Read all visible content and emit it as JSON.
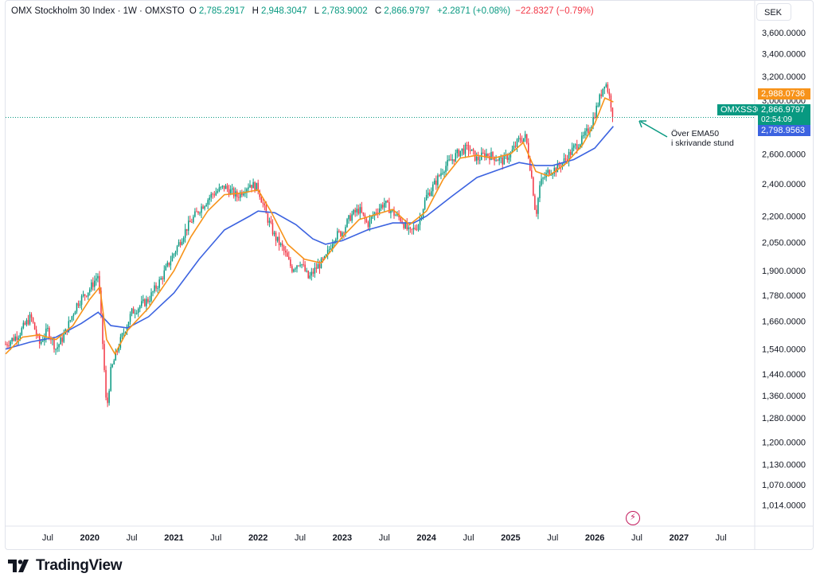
{
  "legend": {
    "title": "OMX Stockholm 30 Index · 1W · OMXSTO",
    "o_label": "O",
    "o_value": "2,785.2917",
    "h_label": "H",
    "h_value": "2,948.3047",
    "l_label": "L",
    "l_value": "2,783.9002",
    "c_label": "C",
    "c_value": "2,866.9797",
    "change": "+2.2871 (+0.08%)",
    "change2": "−22.8327 (−0.79%)"
  },
  "currency": "SEK",
  "tags": {
    "ema_fast": "2,988.0736",
    "symbol": "OMXSS30",
    "price": "2,866.9797",
    "countdown": "02:54:09",
    "ema50": "2,798.9563"
  },
  "annotation": {
    "line1": "Över EMA50",
    "line2": "i skrivande stund"
  },
  "brand": {
    "name": "TradingView"
  },
  "colors": {
    "up": "#089981",
    "down": "#f23645",
    "ema_fast": "#f7931a",
    "ema50": "#3c63e0",
    "price_line": "#089981"
  },
  "chart_data": {
    "type": "line",
    "title": "OMX Stockholm 30 Index · 1W · OMXSTO",
    "y_scale": "log",
    "ylim": [
      960,
      3700
    ],
    "y_ticks": [
      1014,
      1070,
      1130,
      1200,
      1280,
      1360,
      1440,
      1540,
      1660,
      1780,
      1900,
      2050,
      2200,
      2400,
      2600,
      2800,
      3000,
      3200,
      3400,
      3600
    ],
    "y_tick_labels": [
      "1,014.0000",
      "1,070.0000",
      "1,130.0000",
      "1,200.0000",
      "1,280.0000",
      "1,360.0000",
      "1,440.0000",
      "1,540.0000",
      "1,660.0000",
      "1,780.0000",
      "1,900.0000",
      "2,050.0000",
      "2,200.0000",
      "2,400.0000",
      "2,600.0000",
      "2,800.0000",
      "3,000.0000",
      "3,200.0000",
      "3,400.0000",
      "3,600.0000"
    ],
    "xlim": [
      2019.0,
      2027.9
    ],
    "x_ticks": [
      2019.5,
      2020.0,
      2020.5,
      2021.0,
      2021.5,
      2022.0,
      2022.5,
      2023.0,
      2023.5,
      2024.0,
      2024.5,
      2025.0,
      2025.5,
      2026.0,
      2026.5,
      2027.0,
      2027.5
    ],
    "x_tick_labels": [
      "Jul",
      "2020",
      "Jul",
      "2021",
      "Jul",
      "2022",
      "Jul",
      "2023",
      "Jul",
      "2024",
      "Jul",
      "2025",
      "Jul",
      "2026",
      "Jul",
      "2027",
      "Jul"
    ],
    "price_points": [
      [
        2019.0,
        1560
      ],
      [
        2019.15,
        1600
      ],
      [
        2019.3,
        1680
      ],
      [
        2019.4,
        1560
      ],
      [
        2019.5,
        1620
      ],
      [
        2019.6,
        1540
      ],
      [
        2019.7,
        1600
      ],
      [
        2019.85,
        1740
      ],
      [
        2020.0,
        1810
      ],
      [
        2020.1,
        1880
      ],
      [
        2020.13,
        1700
      ],
      [
        2020.2,
        1300
      ],
      [
        2020.25,
        1450
      ],
      [
        2020.35,
        1560
      ],
      [
        2020.5,
        1700
      ],
      [
        2020.7,
        1760
      ],
      [
        2020.85,
        1860
      ],
      [
        2021.0,
        1990
      ],
      [
        2021.15,
        2130
      ],
      [
        2021.3,
        2240
      ],
      [
        2021.45,
        2330
      ],
      [
        2021.6,
        2380
      ],
      [
        2021.75,
        2320
      ],
      [
        2021.9,
        2400
      ],
      [
        2022.0,
        2370
      ],
      [
        2022.1,
        2200
      ],
      [
        2022.2,
        2080
      ],
      [
        2022.3,
        2010
      ],
      [
        2022.4,
        1910
      ],
      [
        2022.5,
        1950
      ],
      [
        2022.6,
        1860
      ],
      [
        2022.7,
        1920
      ],
      [
        2022.8,
        1960
      ],
      [
        2022.9,
        2080
      ],
      [
        2023.0,
        2110
      ],
      [
        2023.1,
        2200
      ],
      [
        2023.2,
        2240
      ],
      [
        2023.3,
        2150
      ],
      [
        2023.4,
        2230
      ],
      [
        2023.5,
        2280
      ],
      [
        2023.6,
        2220
      ],
      [
        2023.7,
        2180
      ],
      [
        2023.8,
        2100
      ],
      [
        2023.9,
        2150
      ],
      [
        2024.0,
        2320
      ],
      [
        2024.1,
        2400
      ],
      [
        2024.2,
        2500
      ],
      [
        2024.3,
        2560
      ],
      [
        2024.4,
        2620
      ],
      [
        2024.5,
        2640
      ],
      [
        2024.6,
        2560
      ],
      [
        2024.7,
        2600
      ],
      [
        2024.8,
        2580
      ],
      [
        2024.9,
        2550
      ],
      [
        2025.0,
        2600
      ],
      [
        2025.1,
        2700
      ],
      [
        2025.18,
        2720
      ],
      [
        2025.25,
        2440
      ],
      [
        2025.3,
        2200
      ],
      [
        2025.35,
        2400
      ],
      [
        2025.45,
        2480
      ],
      [
        2025.55,
        2500
      ],
      [
        2025.65,
        2560
      ],
      [
        2025.75,
        2640
      ],
      [
        2025.85,
        2700
      ],
      [
        2025.95,
        2800
      ],
      [
        2026.05,
        3000
      ],
      [
        2026.12,
        3160
      ],
      [
        2026.15,
        3100
      ],
      [
        2026.19,
        2980
      ],
      [
        2026.22,
        2866.98
      ]
    ],
    "ema_fast_points": [
      [
        2019.0,
        1520
      ],
      [
        2019.2,
        1590
      ],
      [
        2019.4,
        1600
      ],
      [
        2019.6,
        1580
      ],
      [
        2019.8,
        1640
      ],
      [
        2020.0,
        1760
      ],
      [
        2020.12,
        1820
      ],
      [
        2020.2,
        1580
      ],
      [
        2020.3,
        1520
      ],
      [
        2020.45,
        1620
      ],
      [
        2020.7,
        1720
      ],
      [
        2021.0,
        1900
      ],
      [
        2021.2,
        2080
      ],
      [
        2021.4,
        2230
      ],
      [
        2021.6,
        2330
      ],
      [
        2021.8,
        2340
      ],
      [
        2022.0,
        2360
      ],
      [
        2022.15,
        2230
      ],
      [
        2022.35,
        2040
      ],
      [
        2022.55,
        1960
      ],
      [
        2022.75,
        1940
      ],
      [
        2023.0,
        2080
      ],
      [
        2023.2,
        2180
      ],
      [
        2023.4,
        2210
      ],
      [
        2023.6,
        2240
      ],
      [
        2023.8,
        2150
      ],
      [
        2024.0,
        2230
      ],
      [
        2024.2,
        2430
      ],
      [
        2024.4,
        2570
      ],
      [
        2024.6,
        2590
      ],
      [
        2024.8,
        2570
      ],
      [
        2025.0,
        2600
      ],
      [
        2025.15,
        2680
      ],
      [
        2025.3,
        2480
      ],
      [
        2025.45,
        2450
      ],
      [
        2025.65,
        2530
      ],
      [
        2025.85,
        2660
      ],
      [
        2026.0,
        2820
      ],
      [
        2026.12,
        3020
      ],
      [
        2026.22,
        2988.07
      ]
    ],
    "ema50_points": [
      [
        2019.0,
        1540
      ],
      [
        2019.3,
        1570
      ],
      [
        2019.6,
        1590
      ],
      [
        2019.9,
        1650
      ],
      [
        2020.1,
        1700
      ],
      [
        2020.25,
        1640
      ],
      [
        2020.45,
        1630
      ],
      [
        2020.7,
        1680
      ],
      [
        2021.0,
        1790
      ],
      [
        2021.3,
        1960
      ],
      [
        2021.6,
        2120
      ],
      [
        2021.9,
        2200
      ],
      [
        2022.0,
        2230
      ],
      [
        2022.2,
        2220
      ],
      [
        2022.45,
        2150
      ],
      [
        2022.65,
        2070
      ],
      [
        2022.8,
        2040
      ],
      [
        2023.0,
        2060
      ],
      [
        2023.3,
        2120
      ],
      [
        2023.6,
        2160
      ],
      [
        2023.85,
        2160
      ],
      [
        2024.0,
        2200
      ],
      [
        2024.3,
        2320
      ],
      [
        2024.6,
        2440
      ],
      [
        2024.9,
        2500
      ],
      [
        2025.1,
        2540
      ],
      [
        2025.3,
        2520
      ],
      [
        2025.5,
        2520
      ],
      [
        2025.75,
        2560
      ],
      [
        2026.0,
        2640
      ],
      [
        2026.22,
        2798.96
      ]
    ],
    "series": [
      {
        "name": "OMXSS30",
        "type": "candles"
      },
      {
        "name": "EMA fast",
        "type": "line"
      },
      {
        "name": "EMA50",
        "type": "line"
      }
    ]
  }
}
